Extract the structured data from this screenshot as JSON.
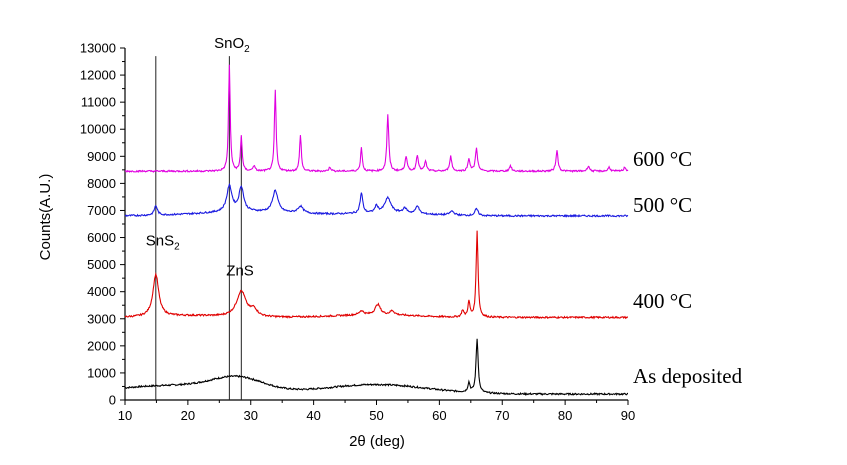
{
  "chart_data": {
    "type": "line",
    "title": "",
    "xlabel": "2θ (deg)",
    "ylabel": "Counts(A.U.)",
    "xlim": [
      10,
      90
    ],
    "ylim": [
      0,
      13000
    ],
    "xticks": [
      10,
      20,
      30,
      40,
      50,
      60,
      70,
      80,
      90
    ],
    "yticks": [
      0,
      1000,
      2000,
      3000,
      4000,
      5000,
      6000,
      7000,
      8000,
      9000,
      10000,
      11000,
      12000,
      13000
    ],
    "grid": false,
    "legend": "none",
    "series": [
      {
        "name": "As deposited",
        "color": "#000000",
        "baseline": 220,
        "humps": [
          [
            18,
            320,
            10
          ],
          [
            28,
            450,
            4
          ],
          [
            50,
            350,
            8
          ]
        ],
        "peaks": [
          [
            64.7,
            350,
            0.2
          ],
          [
            66.0,
            2000,
            0.2
          ]
        ]
      },
      {
        "name": "400 °C",
        "color": "#e00000",
        "baseline": 3050,
        "humps": [
          [
            20,
            60,
            5
          ],
          [
            50,
            100,
            6
          ]
        ],
        "peaks": [
          [
            14.9,
            1550,
            0.55
          ],
          [
            28.5,
            950,
            0.9
          ],
          [
            30.5,
            250,
            0.6
          ],
          [
            47.6,
            150,
            0.4
          ],
          [
            50.2,
            380,
            0.5
          ],
          [
            52.5,
            150,
            0.4
          ],
          [
            63.7,
            250,
            0.2
          ],
          [
            64.7,
            550,
            0.2
          ],
          [
            66.0,
            3200,
            0.18
          ]
        ]
      },
      {
        "name": "500 °C",
        "color": "#1a1ae0",
        "baseline": 6800,
        "humps": [
          [
            30,
            150,
            8
          ],
          [
            52,
            100,
            6
          ]
        ],
        "peaks": [
          [
            14.9,
            350,
            0.3
          ],
          [
            26.6,
            950,
            0.5
          ],
          [
            28.5,
            900,
            0.45
          ],
          [
            33.9,
            800,
            0.5
          ],
          [
            37.9,
            250,
            0.5
          ],
          [
            47.6,
            750,
            0.25
          ],
          [
            50.0,
            250,
            0.3
          ],
          [
            51.8,
            550,
            0.6
          ],
          [
            54.5,
            180,
            0.4
          ],
          [
            56.5,
            300,
            0.3
          ],
          [
            62.0,
            150,
            0.4
          ],
          [
            65.9,
            250,
            0.3
          ]
        ]
      },
      {
        "name": "600 °C",
        "color": "#e000e0",
        "baseline": 8450,
        "humps": [],
        "peaks": [
          [
            26.6,
            3900,
            0.16
          ],
          [
            28.5,
            1300,
            0.16
          ],
          [
            30.5,
            200,
            0.2
          ],
          [
            33.9,
            3000,
            0.16
          ],
          [
            37.9,
            1350,
            0.16
          ],
          [
            42.6,
            150,
            0.2
          ],
          [
            47.6,
            900,
            0.16
          ],
          [
            51.8,
            2100,
            0.18
          ],
          [
            54.7,
            550,
            0.2
          ],
          [
            56.5,
            600,
            0.2
          ],
          [
            57.8,
            350,
            0.2
          ],
          [
            61.8,
            550,
            0.2
          ],
          [
            64.7,
            450,
            0.2
          ],
          [
            65.9,
            850,
            0.2
          ],
          [
            71.3,
            200,
            0.2
          ],
          [
            78.7,
            750,
            0.2
          ],
          [
            83.7,
            200,
            0.2
          ],
          [
            87.0,
            150,
            0.2
          ],
          [
            89.5,
            150,
            0.2
          ]
        ]
      }
    ],
    "reference_lines": [
      {
        "x": 14.9,
        "y_top": 12700
      },
      {
        "x": 26.6,
        "y_top": 12700
      },
      {
        "x": 28.5,
        "y_top": 9700
      }
    ],
    "annotations": [
      {
        "base": "SnO",
        "sub": "2",
        "x": 27.0,
        "y": 13000
      },
      {
        "base": "SnS",
        "sub": "2",
        "x": 16.0,
        "y": 5700
      },
      {
        "base": "ZnS",
        "sub": "",
        "x": 28.3,
        "y": 4600
      }
    ]
  }
}
